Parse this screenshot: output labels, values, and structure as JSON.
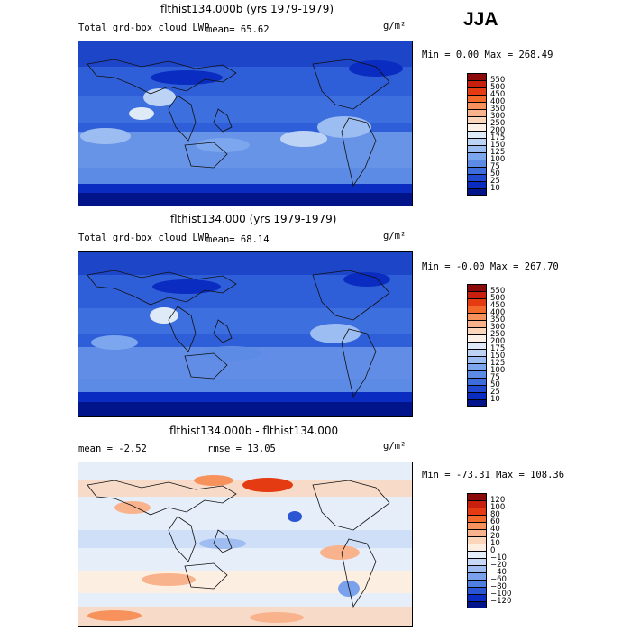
{
  "season": "JJA",
  "units": "g/m²",
  "panels": [
    {
      "title": "flthist134.000b (yrs 1979-1979)",
      "field_label": "Total grd-box cloud LWP",
      "mean_label": "mean=  65.62",
      "minmax_label": "Min =    0.00 Max = 268.49",
      "levels": [
        "550",
        "500",
        "450",
        "400",
        "350",
        "300",
        "250",
        "200",
        "175",
        "150",
        "125",
        "100",
        "75",
        "50",
        "25",
        "10"
      ],
      "colors": [
        "#8b0a0a",
        "#c8200e",
        "#e53b12",
        "#f26a2c",
        "#f7925c",
        "#f9b38c",
        "#fbd6bb",
        "#fdf0e6",
        "#dfeaf8",
        "#bdd3f5",
        "#9cbdf2",
        "#7ca6ee",
        "#5c8be6",
        "#3d6cdc",
        "#2049cf",
        "#0b2cc0",
        "#02148a"
      ],
      "minmax_value": "268.49"
    },
    {
      "title": "flthist134.000 (yrs 1979-1979)",
      "field_label": "Total grd-box cloud LWP",
      "mean_label": "mean=  68.14",
      "minmax_label": "Min =   -0.00 Max = 267.70",
      "levels": [
        "550",
        "500",
        "450",
        "400",
        "350",
        "300",
        "250",
        "200",
        "175",
        "150",
        "125",
        "100",
        "75",
        "50",
        "25",
        "10"
      ],
      "colors": [
        "#8b0a0a",
        "#c8200e",
        "#e53b12",
        "#f26a2c",
        "#f7925c",
        "#f9b38c",
        "#fbd6bb",
        "#fdf0e6",
        "#dfeaf8",
        "#bdd3f5",
        "#9cbdf2",
        "#7ca6ee",
        "#5c8be6",
        "#3d6cdc",
        "#2049cf",
        "#0b2cc0",
        "#02148a"
      ]
    },
    {
      "title": "flthist134.000b - flthist134.000",
      "mean_label": "mean =  -2.52",
      "rmse_label": "rmse =  13.05",
      "minmax_label": "Min = -73.31 Max = 108.36",
      "levels": [
        "120",
        "100",
        "80",
        "60",
        "40",
        "20",
        "10",
        "0",
        "−10",
        "−20",
        "−40",
        "−60",
        "−80",
        "−100",
        "−120"
      ],
      "colors": [
        "#8b0a0a",
        "#c8200e",
        "#e53b12",
        "#f26a2c",
        "#f7925c",
        "#f9b38c",
        "#fbd6bb",
        "#fdeee2",
        "#e6eefa",
        "#c6d8f6",
        "#9fbdf1",
        "#7aa2ec",
        "#4f7fe0",
        "#2a56d3",
        "#0b2cc0",
        "#02148a"
      ]
    }
  ]
}
